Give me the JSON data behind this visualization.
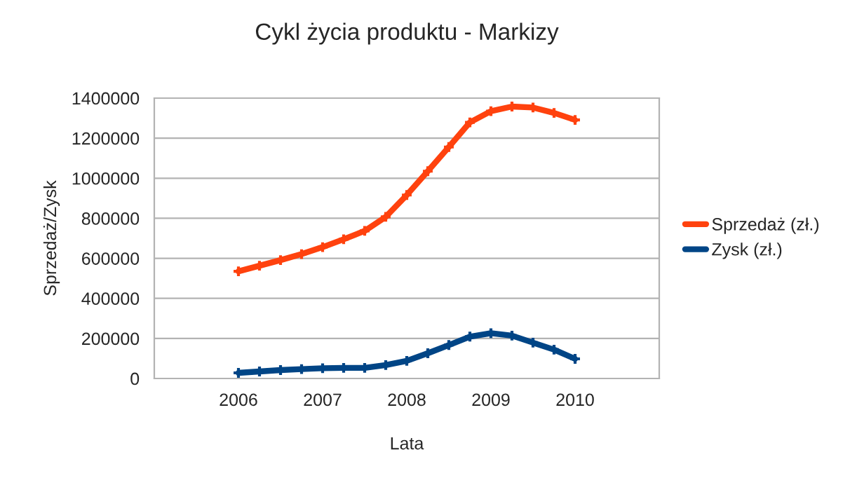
{
  "chart_data": {
    "type": "line",
    "title": "Cykl życia produktu - Markizy",
    "xlabel": "Lata",
    "ylabel": "Sprzedaż/Zysk",
    "x": [
      2006,
      2006.25,
      2006.5,
      2006.75,
      2007,
      2007.25,
      2007.5,
      2007.75,
      2008,
      2008.25,
      2008.5,
      2008.75,
      2009,
      2009.25,
      2009.5,
      2009.75,
      2010
    ],
    "series": [
      {
        "name": "Sprzedaż (zł.)",
        "color": "#ff420e",
        "values": [
          535000,
          563000,
          591000,
          621000,
          656000,
          695000,
          737000,
          807000,
          916000,
          1035000,
          1156000,
          1279000,
          1335000,
          1358000,
          1353000,
          1326000,
          1291000
        ]
      },
      {
        "name": "Zysk (zł.)",
        "color": "#004586",
        "values": [
          28000,
          35000,
          42000,
          47000,
          51000,
          53000,
          53000,
          67000,
          88000,
          126000,
          167000,
          209000,
          226000,
          214000,
          179000,
          144000,
          98000
        ]
      }
    ],
    "xlim": [
      2005,
      2011
    ],
    "xticks": [
      {
        "value": 2005,
        "label": null
      },
      2006,
      2007,
      2008,
      2009,
      2010,
      {
        "value": 2011,
        "label": null
      }
    ],
    "ylim": [
      0,
      1400000
    ],
    "yticks": [
      0,
      200000,
      400000,
      600000,
      800000,
      1000000,
      1200000,
      1400000
    ],
    "grid": "y",
    "legend": "right",
    "marker": "cross",
    "line_style": "solid"
  }
}
